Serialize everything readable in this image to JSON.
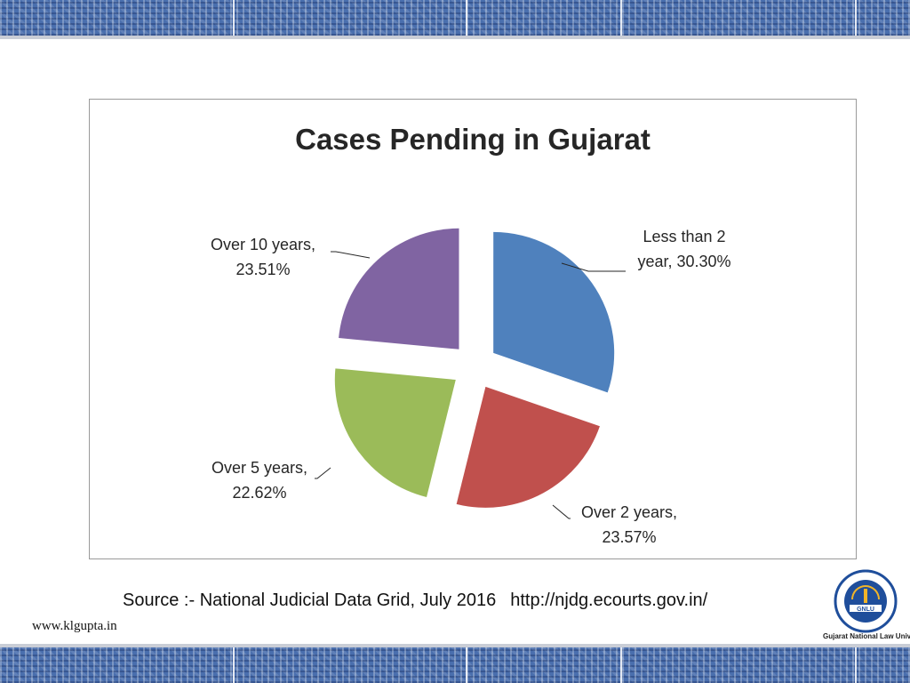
{
  "chart_data": {
    "type": "pie",
    "title": "Cases Pending in Gujarat",
    "slices": [
      {
        "label_line1": "Less than 2",
        "label_line2": "year, 30.30%",
        "category": "Less than 2 year",
        "value": 30.3,
        "color": "#4f81bd"
      },
      {
        "label_line1": "Over 2 years,",
        "label_line2": "23.57%",
        "category": "Over 2 years",
        "value": 23.57,
        "color": "#c0504d"
      },
      {
        "label_line1": "Over 5 years,",
        "label_line2": "22.62%",
        "category": "Over 5 years",
        "value": 22.62,
        "color": "#9bbb59"
      },
      {
        "label_line1": "Over 10 years,",
        "label_line2": "23.51%",
        "category": "Over 10 years",
        "value": 23.51,
        "color": "#8064a2"
      }
    ],
    "exploded": true,
    "legend": "none"
  },
  "footer": {
    "source": "Source :- National Judicial Data Grid, July 2016",
    "url": "http://njdg.ecourts.gov.in/",
    "website": "www.klgupta.in"
  },
  "logo": {
    "name": "GNLU",
    "caption": "Gujarat National Law University",
    "icon": "university-seal-icon"
  },
  "colors": {
    "band": "#4a6fae",
    "label_text": "#262626"
  }
}
